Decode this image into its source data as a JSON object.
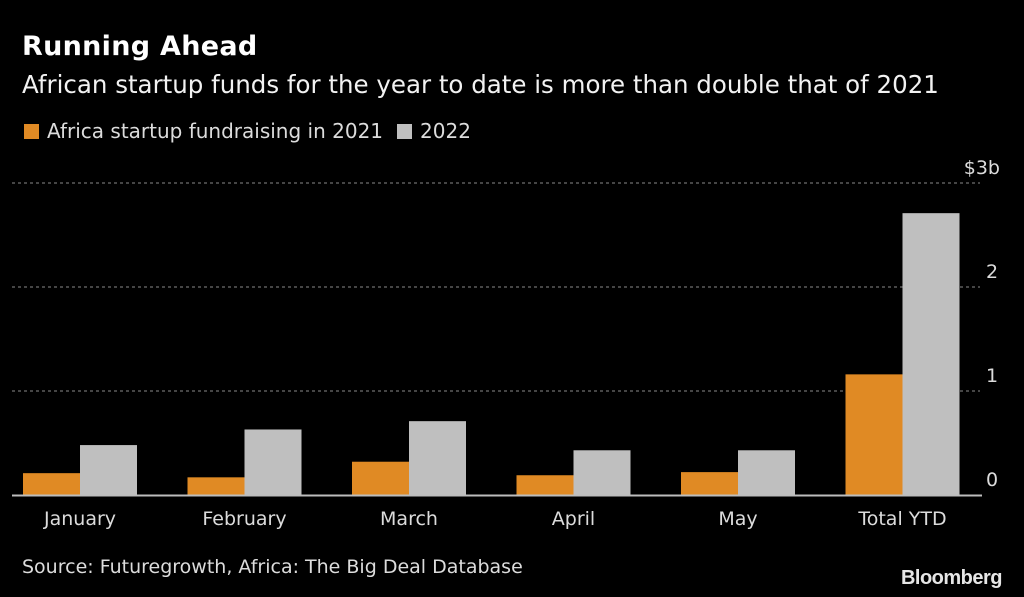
{
  "chart_data": {
    "type": "bar",
    "title": "Running Ahead",
    "subtitle": "African startup funds for the year to date is more than double that of 2021",
    "categories": [
      "January",
      "February",
      "March",
      "April",
      "May",
      "Total YTD"
    ],
    "series": [
      {
        "name": "Africa startup fundraising in 2021",
        "color": "#e08a24",
        "values": [
          0.21,
          0.17,
          0.32,
          0.19,
          0.22,
          1.16
        ]
      },
      {
        "name": "2022",
        "color": "#bfbfbf",
        "values": [
          0.48,
          0.63,
          0.71,
          0.43,
          0.43,
          2.71
        ]
      }
    ],
    "yaxis": {
      "ylim": [
        0,
        3
      ],
      "ticks": [
        0,
        1,
        2,
        3
      ],
      "tick_labels": [
        "0",
        "1",
        "2",
        "$3b"
      ],
      "position": "right",
      "grid": true,
      "grid_style": "dotted"
    },
    "xlabel": "",
    "ylabel": "",
    "legend_position": "top-left",
    "source": "Source: Futuregrowth, Africa: The Big Deal Database",
    "brand": "Bloomberg"
  }
}
